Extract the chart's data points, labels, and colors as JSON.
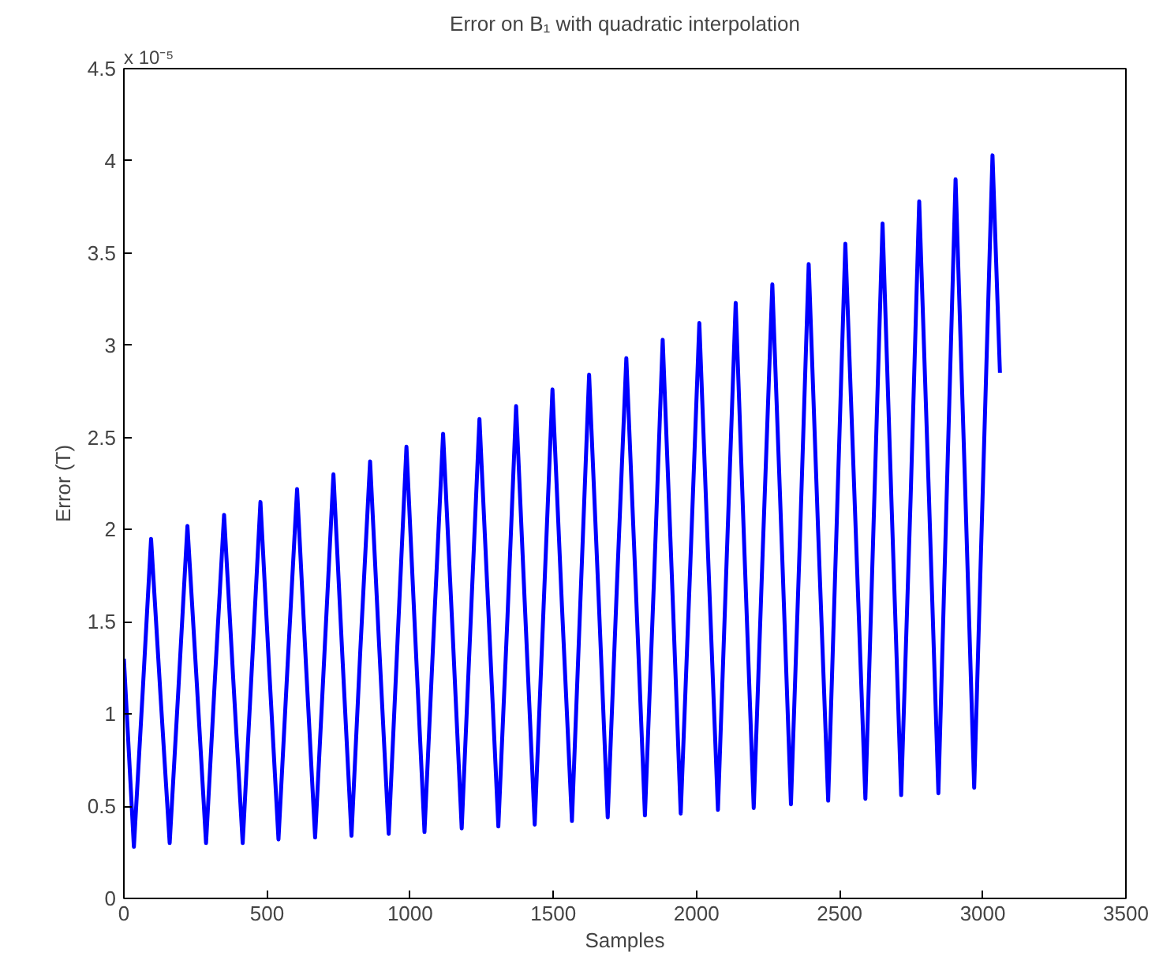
{
  "chart_data": {
    "type": "line",
    "title": "Error on B₁ with quadratic interpolation",
    "xlabel": "Samples",
    "ylabel": "Error (T)",
    "annotations": [
      "x 10⁻⁵"
    ],
    "xlim": [
      0,
      3500
    ],
    "xticks": [
      0,
      500,
      1000,
      1500,
      2000,
      2500,
      3000,
      3500
    ],
    "ylim": [
      0,
      4.5
    ],
    "yticks": [
      0,
      0.5,
      1,
      1.5,
      2,
      2.5,
      3,
      3.5,
      4,
      4.5
    ],
    "grid": false,
    "series": [
      {
        "color": "#0000ff",
        "x": [
          0,
          35,
          65,
          95,
          128,
          160,
          191,
          222,
          255,
          287,
          318,
          350,
          382,
          415,
          446,
          477,
          508,
          540,
          572,
          605,
          636,
          668,
          700,
          732,
          763,
          795,
          826,
          860,
          892,
          925,
          956,
          987,
          1018,
          1050,
          1082,
          1115,
          1148,
          1180,
          1211,
          1242,
          1275,
          1308,
          1340,
          1370,
          1402,
          1435,
          1466,
          1497,
          1530,
          1565,
          1595,
          1625,
          1658,
          1690,
          1722,
          1755,
          1788,
          1820,
          1852,
          1882,
          1914,
          1945,
          1978,
          2010,
          2042,
          2075,
          2106,
          2137,
          2168,
          2200,
          2232,
          2265,
          2298,
          2330,
          2362,
          2392,
          2425,
          2460,
          2490,
          2520,
          2555,
          2590,
          2620,
          2650,
          2682,
          2715,
          2748,
          2778,
          2812,
          2845,
          2875,
          2905,
          2938,
          2970,
          3002,
          3034,
          3060
        ],
        "values": [
          1.3,
          0.28,
          1.1,
          1.95,
          1.1,
          0.3,
          1.15,
          2.02,
          1.16,
          0.3,
          1.19,
          2.08,
          1.19,
          0.3,
          1.22,
          2.15,
          1.23,
          0.32,
          1.27,
          2.22,
          1.27,
          0.33,
          1.31,
          2.3,
          1.32,
          0.34,
          1.35,
          2.37,
          1.36,
          0.35,
          1.4,
          2.45,
          1.41,
          0.36,
          1.44,
          2.52,
          1.45,
          0.38,
          1.49,
          2.6,
          1.5,
          0.39,
          1.53,
          2.67,
          1.54,
          0.4,
          1.58,
          2.76,
          1.59,
          0.42,
          1.63,
          2.84,
          1.64,
          0.44,
          1.69,
          2.93,
          1.69,
          0.45,
          1.74,
          3.03,
          1.75,
          0.46,
          1.79,
          3.12,
          1.8,
          0.48,
          1.86,
          3.23,
          1.86,
          0.49,
          1.91,
          3.33,
          1.92,
          0.51,
          1.98,
          3.44,
          1.99,
          0.53,
          2.04,
          3.55,
          2.05,
          0.54,
          2.1,
          3.66,
          2.11,
          0.56,
          2.17,
          3.78,
          2.18,
          0.57,
          2.24,
          3.9,
          2.25,
          0.6,
          2.32,
          4.03,
          2.85
        ]
      }
    ]
  }
}
